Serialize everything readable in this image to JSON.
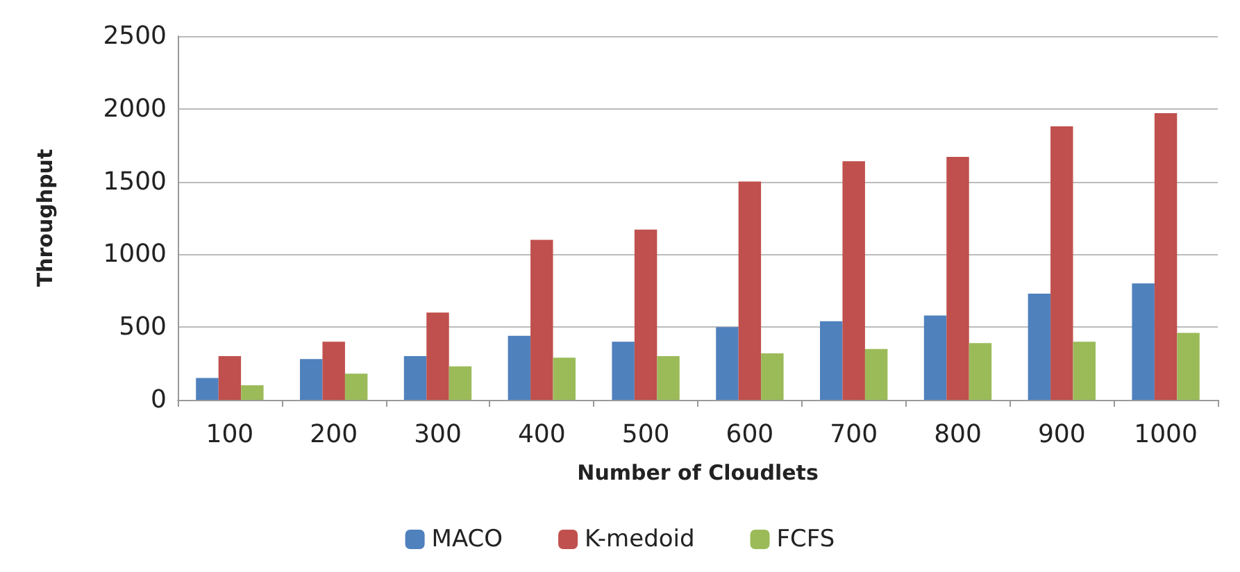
{
  "chart_data": {
    "type": "bar",
    "xlabel": "Number of Cloudlets",
    "ylabel": "Throughput",
    "categories": [
      "100",
      "200",
      "300",
      "400",
      "500",
      "600",
      "700",
      "800",
      "900",
      "1000"
    ],
    "series": [
      {
        "name": "MACO",
        "color": "#4f81bd",
        "values": [
          150,
          280,
          300,
          440,
          400,
          500,
          540,
          580,
          730,
          800
        ]
      },
      {
        "name": "K-medoid",
        "color": "#c0504d",
        "values": [
          300,
          400,
          600,
          1100,
          1170,
          1500,
          1640,
          1670,
          1880,
          1970
        ]
      },
      {
        "name": "FCFS",
        "color": "#9bbb59",
        "values": [
          100,
          180,
          230,
          290,
          300,
          320,
          350,
          390,
          400,
          460
        ]
      }
    ],
    "ylim": [
      0,
      2500
    ],
    "yticks": [
      0,
      500,
      1000,
      1500,
      2000,
      2500
    ],
    "grid": "y",
    "legend": "bottom"
  }
}
